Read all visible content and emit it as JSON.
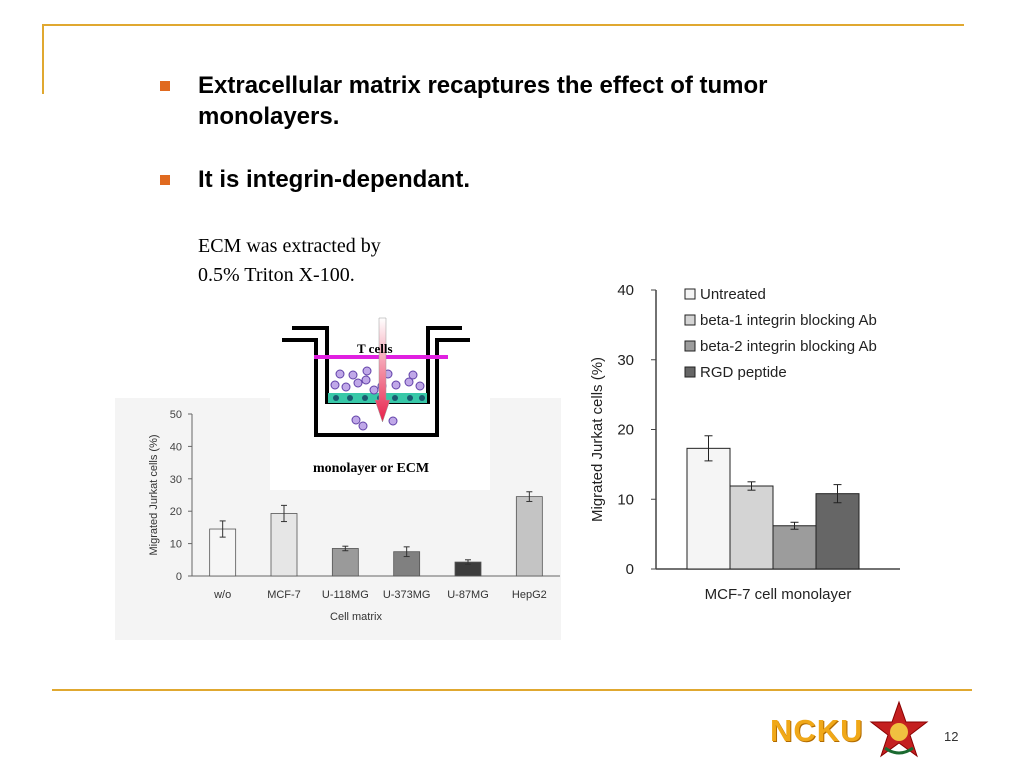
{
  "bullets": [
    "Extracellular matrix recaptures the effect of tumor monolayers.",
    "It is integrin-dependant."
  ],
  "note": [
    "ECM was extracted by",
    "0.5% Triton X-100."
  ],
  "diagram": {
    "cells_label": "T cells",
    "layer_label": "monolayer or ECM"
  },
  "footer": {
    "logo_text": "NCKU",
    "page_number": "12"
  },
  "colors": {
    "accent_line": "#e0a830",
    "bullet": "#e06a20",
    "logo": "#f0a818"
  },
  "chart_data": [
    {
      "type": "bar",
      "title": "",
      "xlabel": "Cell matrix",
      "ylabel": "Migrated Jurkat cells (%)",
      "ylim": [
        0,
        50
      ],
      "yticks": [
        0,
        10,
        20,
        30,
        40,
        50
      ],
      "categories": [
        "w/o",
        "MCF-7",
        "U-118MG",
        "U-373MG",
        "U-87MG",
        "HepG2"
      ],
      "values": [
        14.5,
        19.3,
        8.5,
        7.5,
        4.3,
        24.5
      ],
      "errors": [
        2.5,
        2.5,
        0.7,
        1.5,
        0.7,
        1.5
      ],
      "bar_colors": [
        "#f6f6f6",
        "#e6e6e6",
        "#9a9a9a",
        "#808080",
        "#3c3c3c",
        "#c4c4c4"
      ]
    },
    {
      "type": "bar",
      "title": "",
      "xlabel": "MCF-7 cell monolayer",
      "ylabel": "Migrated Jurkat cells (%)",
      "ylim": [
        0,
        40
      ],
      "yticks": [
        0,
        10,
        20,
        30,
        40
      ],
      "legend_position": "top-right",
      "series": [
        {
          "name": "Untreated",
          "value": 17.3,
          "error": 1.8,
          "color": "#f5f5f5"
        },
        {
          "name": "beta-1 integrin blocking Ab",
          "value": 11.9,
          "error": 0.6,
          "color": "#d4d4d4"
        },
        {
          "name": "beta-2 integrin blocking Ab",
          "value": 6.2,
          "error": 0.5,
          "color": "#9c9c9c"
        },
        {
          "name": "RGD peptide",
          "value": 10.8,
          "error": 1.3,
          "color": "#666666"
        }
      ]
    }
  ]
}
